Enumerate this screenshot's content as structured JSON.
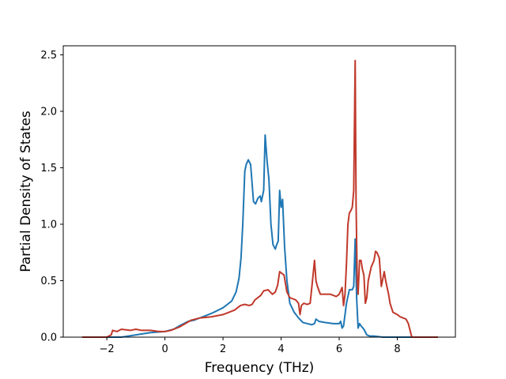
{
  "chart_data": {
    "type": "line",
    "title": "",
    "xlabel": "Frequency (THz)",
    "ylabel": "Partial Density of States",
    "xlim": [
      -3.5,
      10.0
    ],
    "ylim": [
      0.0,
      2.58
    ],
    "xticks": [
      -2,
      0,
      2,
      4,
      6,
      8
    ],
    "yticks": [
      0.0,
      0.5,
      1.0,
      1.5,
      2.0,
      2.5
    ],
    "xtick_labels": [
      "−2",
      "0",
      "2",
      "4",
      "6",
      "8"
    ],
    "ytick_labels": [
      "0.0",
      "0.5",
      "1.0",
      "1.5",
      "2.0",
      "2.5"
    ],
    "grid": false,
    "legend": "none",
    "series": [
      {
        "color": "#1f77b4",
        "x": [
          -2.85,
          -2.0,
          -1.5,
          -1.0,
          -0.5,
          0.0,
          0.3,
          0.5,
          0.8,
          1.0,
          1.3,
          1.6,
          2.0,
          2.3,
          2.45,
          2.55,
          2.62,
          2.68,
          2.75,
          2.8,
          2.87,
          2.95,
          3.05,
          3.12,
          3.2,
          3.28,
          3.32,
          3.4,
          3.45,
          3.52,
          3.58,
          3.65,
          3.72,
          3.8,
          3.85,
          3.9,
          3.95,
          4.0,
          4.05,
          4.12,
          4.2,
          4.3,
          4.45,
          4.6,
          4.75,
          4.9,
          5.05,
          5.15,
          5.2,
          5.3,
          5.5,
          5.8,
          6.0,
          6.05,
          6.1,
          6.15,
          6.25,
          6.35,
          6.45,
          6.5,
          6.55,
          6.6,
          6.65,
          6.7,
          6.75,
          6.85,
          6.95,
          7.05,
          7.2,
          7.5,
          8.0,
          8.5,
          9.0,
          9.4
        ],
        "y": [
          0.0,
          0.0,
          0.0,
          0.02,
          0.04,
          0.05,
          0.07,
          0.1,
          0.14,
          0.15,
          0.18,
          0.21,
          0.26,
          0.32,
          0.4,
          0.52,
          0.7,
          1.0,
          1.47,
          1.53,
          1.57,
          1.53,
          1.2,
          1.18,
          1.23,
          1.25,
          1.2,
          1.3,
          1.79,
          1.55,
          1.4,
          1.0,
          0.82,
          0.78,
          0.82,
          0.85,
          1.3,
          1.15,
          1.22,
          0.8,
          0.5,
          0.3,
          0.22,
          0.17,
          0.13,
          0.12,
          0.11,
          0.12,
          0.16,
          0.14,
          0.13,
          0.12,
          0.12,
          0.14,
          0.08,
          0.1,
          0.3,
          0.42,
          0.42,
          0.45,
          0.87,
          0.35,
          0.08,
          0.12,
          0.1,
          0.07,
          0.02,
          0.01,
          0.01,
          0.0,
          0.0,
          0.0,
          0.0,
          0.0
        ]
      },
      {
        "color": "#c0392b",
        "x": [
          -2.85,
          -2.0,
          -1.85,
          -1.8,
          -1.65,
          -1.5,
          -1.2,
          -1.0,
          -0.8,
          -0.5,
          -0.2,
          0.0,
          0.2,
          0.5,
          0.7,
          0.9,
          1.2,
          1.6,
          2.0,
          2.2,
          2.4,
          2.6,
          2.75,
          2.9,
          3.0,
          3.1,
          3.2,
          3.3,
          3.4,
          3.55,
          3.7,
          3.8,
          3.88,
          3.95,
          4.0,
          4.1,
          4.2,
          4.3,
          4.4,
          4.5,
          4.6,
          4.65,
          4.7,
          4.78,
          4.9,
          5.0,
          5.08,
          5.15,
          5.2,
          5.25,
          5.35,
          5.5,
          5.7,
          5.9,
          6.0,
          6.1,
          6.15,
          6.2,
          6.25,
          6.3,
          6.35,
          6.4,
          6.45,
          6.5,
          6.55,
          6.58,
          6.62,
          6.65,
          6.7,
          6.75,
          6.8,
          6.85,
          6.9,
          6.95,
          7.0,
          7.1,
          7.2,
          7.25,
          7.3,
          7.38,
          7.45,
          7.55,
          7.6,
          7.7,
          7.75,
          7.85,
          8.0,
          8.1,
          8.2,
          8.3,
          8.38,
          8.5,
          9.0,
          9.4
        ],
        "y": [
          0.0,
          0.0,
          0.02,
          0.06,
          0.05,
          0.07,
          0.06,
          0.07,
          0.06,
          0.06,
          0.05,
          0.05,
          0.06,
          0.09,
          0.12,
          0.15,
          0.17,
          0.18,
          0.2,
          0.22,
          0.24,
          0.28,
          0.29,
          0.28,
          0.29,
          0.33,
          0.35,
          0.37,
          0.41,
          0.42,
          0.38,
          0.4,
          0.46,
          0.58,
          0.57,
          0.55,
          0.4,
          0.35,
          0.34,
          0.33,
          0.3,
          0.2,
          0.28,
          0.3,
          0.29,
          0.3,
          0.5,
          0.68,
          0.5,
          0.45,
          0.38,
          0.38,
          0.38,
          0.36,
          0.38,
          0.44,
          0.28,
          0.38,
          0.65,
          1.0,
          1.1,
          1.12,
          1.15,
          1.3,
          2.45,
          1.2,
          0.5,
          0.38,
          0.68,
          0.68,
          0.6,
          0.55,
          0.3,
          0.35,
          0.5,
          0.62,
          0.68,
          0.76,
          0.75,
          0.7,
          0.45,
          0.58,
          0.5,
          0.38,
          0.3,
          0.22,
          0.2,
          0.18,
          0.17,
          0.16,
          0.12,
          0.0,
          0.0,
          0.0
        ]
      }
    ]
  }
}
